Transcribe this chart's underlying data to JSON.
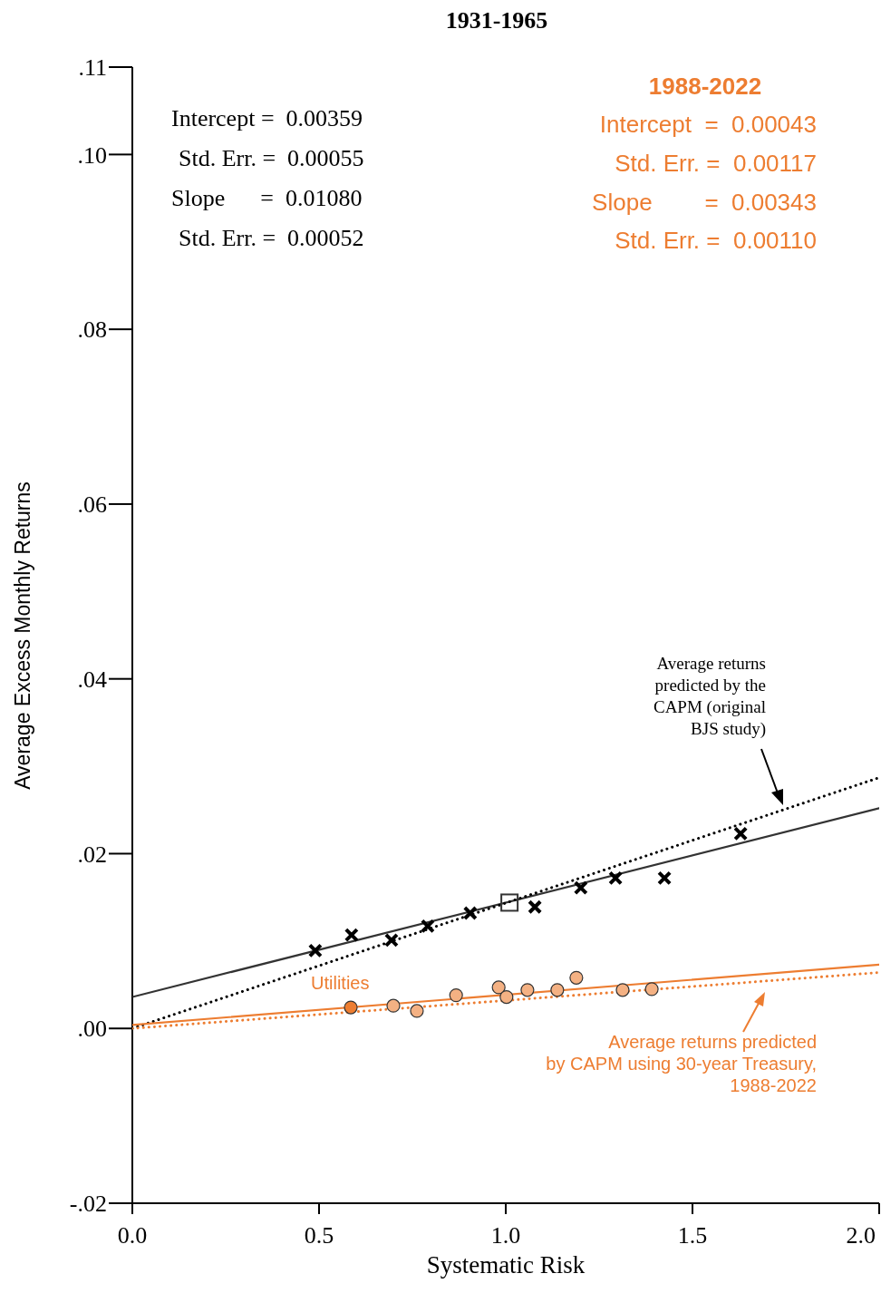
{
  "chart_data": {
    "type": "scatter",
    "title": "1931-1965",
    "xlabel": "Systematic Risk",
    "ylabel": "Average Excess Monthly Returns",
    "xlim": [
      0,
      2
    ],
    "ylim": [
      -0.02,
      0.11
    ],
    "xticks": [
      {
        "value": 0,
        "label": "0.0"
      },
      {
        "value": 0.5,
        "label": "0.5"
      },
      {
        "value": 1,
        "label": "1.0"
      },
      {
        "value": 1.5,
        "label": "1.5"
      },
      {
        "value": 2,
        "label": "2.0"
      }
    ],
    "yticks": [
      {
        "value": -0.02,
        "label": "-.02"
      },
      {
        "value": 0,
        "label": ".00"
      },
      {
        "value": 0.02,
        "label": ".02"
      },
      {
        "value": 0.04,
        "label": ".04"
      },
      {
        "value": 0.06,
        "label": ".06"
      },
      {
        "value": 0.08,
        "label": ".08"
      },
      {
        "value": 0.1,
        "label": ".10"
      },
      {
        "value": 0.11,
        "label": ".11"
      }
    ],
    "series": [
      {
        "type": "line",
        "color": "#333333",
        "line_style": "solid",
        "marker": "none",
        "x": [
          0,
          2
        ],
        "values": [
          0.0036,
          0.0252
        ]
      },
      {
        "type": "line",
        "color": "#000000",
        "line_style": "dotted",
        "marker": "none",
        "x": [
          0,
          2
        ],
        "values": [
          0,
          0.0287
        ]
      },
      {
        "type": "line",
        "color": "#ed7d31",
        "line_style": "solid",
        "marker": "none",
        "x": [
          0,
          2
        ],
        "values": [
          0.0004,
          0.0073
        ]
      },
      {
        "type": "line",
        "color": "#ed7d31",
        "line_style": "dotted",
        "marker": "none",
        "x": [
          0,
          2
        ],
        "values": [
          0,
          0.0064
        ]
      },
      {
        "color": "#000000",
        "marker": "cross",
        "x": [
          0.49,
          0.587,
          0.694,
          0.791,
          0.905,
          1.078,
          1.201,
          1.294,
          1.425,
          1.629
        ],
        "values": [
          0.0089,
          0.0107,
          0.0101,
          0.0117,
          0.0132,
          0.0139,
          0.0161,
          0.0172,
          0.0172,
          0.0223
        ]
      },
      {
        "color": "#333333",
        "marker": "square",
        "x": [
          1.01
        ],
        "values": [
          0.0144
        ]
      },
      {
        "color": "#f4b183",
        "marker": "circle",
        "x": [
          0.699,
          0.762,
          0.867,
          0.981,
          1.002,
          1.058,
          1.138,
          1.189,
          1.313,
          1.391
        ],
        "values": [
          0.0026,
          0.002,
          0.0038,
          0.0047,
          0.0036,
          0.0044,
          0.0044,
          0.0058,
          0.0044,
          0.0045
        ]
      },
      {
        "color": "#ed7d31",
        "marker": "circle",
        "x": [
          0.585
        ],
        "values": [
          0.0024
        ]
      }
    ],
    "annotations": [
      "Intercept =  0.00359",
      "Std. Err. =  0.00055",
      "Slope      =  0.01080",
      "Std. Err. =  0.00052",
      "1988-2022",
      "Intercept  =  0.00043",
      "Std. Err. =  0.00117",
      "Slope        =  0.00343",
      "Std. Err. =  0.00110",
      "Average returns\npredicted by the\nCAPM (original\nBJS study)",
      "Average returns predicted\nby CAPM using 30-year Treasury,\n1988-2022",
      {
        "text": "Utilities",
        "x": 0.585,
        "y": 0.0024
      }
    ]
  }
}
